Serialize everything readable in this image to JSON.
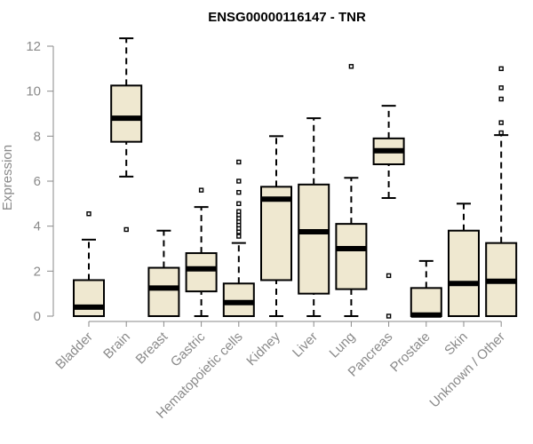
{
  "chart_data": {
    "type": "boxplot",
    "title": "ENSG00000116147 - TNR",
    "xlabel": "",
    "ylabel": "Expression",
    "ylim": [
      0,
      12.3
    ],
    "yticks": [
      0,
      2,
      4,
      6,
      8,
      10,
      12
    ],
    "grid": false,
    "colors": {
      "box_fill": "#efe8d0",
      "stroke": "#000000",
      "axis": "#8a8a8a",
      "label": "#8a8a8a"
    },
    "categories": [
      "Bladder",
      "Brain",
      "Breast",
      "Gastric",
      "Hematopoietic cells",
      "Kidney",
      "Liver",
      "Lung",
      "Pancreas",
      "Prostate",
      "Skin",
      "Unknown / Other"
    ],
    "series": [
      {
        "name": "Bladder",
        "whisker_low": 0,
        "q1": 0,
        "median": 0.4,
        "q3": 1.6,
        "whisker_high": 3.4,
        "outliers": [
          4.55
        ]
      },
      {
        "name": "Brain",
        "whisker_low": 6.2,
        "q1": 7.75,
        "median": 8.8,
        "q3": 10.25,
        "whisker_high": 12.35,
        "outliers": [
          3.85
        ]
      },
      {
        "name": "Breast",
        "whisker_low": 0,
        "q1": 0,
        "median": 1.25,
        "q3": 2.15,
        "whisker_high": 3.8,
        "outliers": []
      },
      {
        "name": "Gastric",
        "whisker_low": 0,
        "q1": 1.1,
        "median": 2.1,
        "q3": 2.8,
        "whisker_high": 4.85,
        "outliers": [
          5.6
        ]
      },
      {
        "name": "Hematopoietic cells",
        "whisker_low": 0,
        "q1": 0,
        "median": 0.6,
        "q3": 1.45,
        "whisker_high": 3.25,
        "outliers": [
          3.55,
          3.75,
          3.9,
          4.05,
          4.2,
          4.35,
          4.5,
          4.65,
          5.0,
          5.5,
          6.0,
          6.85
        ]
      },
      {
        "name": "Kidney",
        "whisker_low": 0,
        "q1": 1.6,
        "median": 5.2,
        "q3": 5.75,
        "whisker_high": 8.0,
        "outliers": []
      },
      {
        "name": "Liver",
        "whisker_low": 0,
        "q1": 1.0,
        "median": 3.75,
        "q3": 5.85,
        "whisker_high": 8.8,
        "outliers": []
      },
      {
        "name": "Lung",
        "whisker_low": 0,
        "q1": 1.2,
        "median": 3.0,
        "q3": 4.1,
        "whisker_high": 6.15,
        "outliers": [
          11.1
        ]
      },
      {
        "name": "Pancreas",
        "whisker_low": 5.25,
        "q1": 6.75,
        "median": 7.35,
        "q3": 7.9,
        "whisker_high": 9.35,
        "outliers": [
          1.8,
          0
        ]
      },
      {
        "name": "Prostate",
        "whisker_low": 0,
        "q1": 0,
        "median": 0.05,
        "q3": 1.25,
        "whisker_high": 2.45,
        "outliers": []
      },
      {
        "name": "Skin",
        "whisker_low": 0,
        "q1": 0,
        "median": 1.45,
        "q3": 3.8,
        "whisker_high": 5.0,
        "outliers": []
      },
      {
        "name": "Unknown / Other",
        "whisker_low": 0,
        "q1": 0,
        "median": 1.55,
        "q3": 3.25,
        "whisker_high": 8.05,
        "outliers": [
          8.15,
          8.6,
          9.65,
          10.15,
          11.0
        ]
      }
    ]
  }
}
